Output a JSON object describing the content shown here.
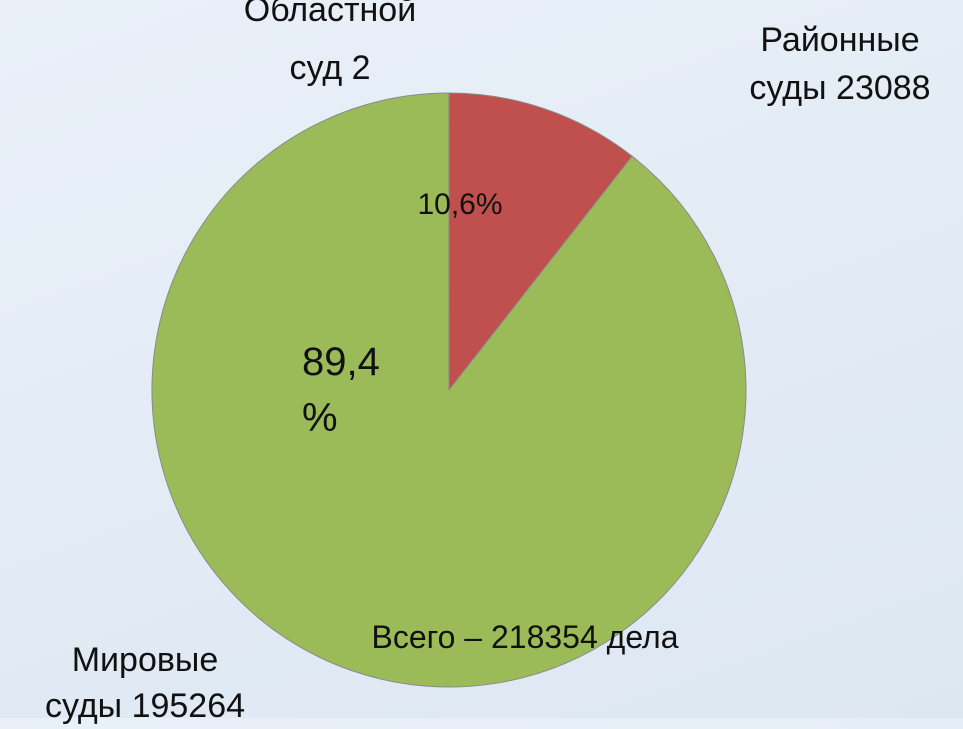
{
  "chart_data": {
    "type": "pie",
    "categories": [
      "Областной суд",
      "Районные суды",
      "Мировые суды"
    ],
    "values": [
      2,
      23088,
      195264
    ],
    "colors": [
      "#4f81bd",
      "#c0504d",
      "#9bbb59"
    ],
    "shares": [
      null,
      10.6,
      89.4
    ],
    "share_labels": [
      null,
      "10,6%",
      "89,4 %"
    ],
    "annotation": "Всего – 218354 дела"
  }
}
